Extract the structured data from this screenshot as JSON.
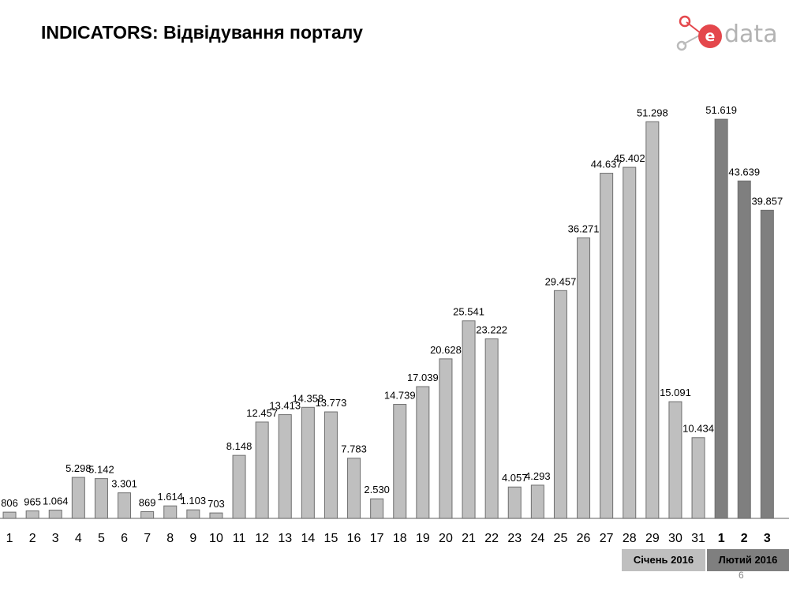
{
  "header": {
    "title": "INDICATORS: Відвідування порталу",
    "logo_text": "data",
    "logo_letter": "e"
  },
  "colors": {
    "january_bar": "#bfbfbf",
    "february_bar": "#7f7f7f",
    "bar_stroke": "#6f6f6f",
    "logo_accent": "#e4474c"
  },
  "legend": {
    "january": "Січень 2016",
    "february": "Лютий 2016"
  },
  "page_number": "6",
  "chart_data": {
    "type": "bar",
    "ylim": [
      0,
      55000
    ],
    "grid": false,
    "series": [
      {
        "name": "Січень 2016",
        "categories": [
          "1",
          "2",
          "3",
          "4",
          "5",
          "6",
          "7",
          "8",
          "9",
          "10",
          "11",
          "12",
          "13",
          "14",
          "15",
          "16",
          "17",
          "18",
          "19",
          "20",
          "21",
          "22",
          "23",
          "24",
          "25",
          "26",
          "27",
          "28",
          "29",
          "30",
          "31"
        ],
        "values": [
          806,
          965,
          1064,
          5298,
          5142,
          3301,
          869,
          1614,
          1103,
          703,
          8148,
          12457,
          13413,
          14358,
          13773,
          7783,
          2530,
          14739,
          17039,
          20628,
          25541,
          23222,
          4057,
          4293,
          29457,
          36271,
          44637,
          45402,
          51298,
          15091,
          10434
        ],
        "labels": [
          "806",
          "965",
          "1.064",
          "5.298",
          "5.142",
          "3.301",
          "869",
          "1.614",
          "1.103",
          "703",
          "8.148",
          "12.457",
          "13.413",
          "14.358",
          "13.773",
          "7.783",
          "2.530",
          "14.739",
          "17.039",
          "20.628",
          "25.541",
          "23.222",
          "4.057",
          "4.293",
          "29.457",
          "36.271",
          "44.637",
          "45.402",
          "51.298",
          "15.091",
          "10.434"
        ]
      },
      {
        "name": "Лютий 2016",
        "categories": [
          "1",
          "2",
          "3"
        ],
        "values": [
          51619,
          43639,
          39857
        ],
        "labels": [
          "51.619",
          "43.639",
          "39.857"
        ]
      }
    ]
  }
}
